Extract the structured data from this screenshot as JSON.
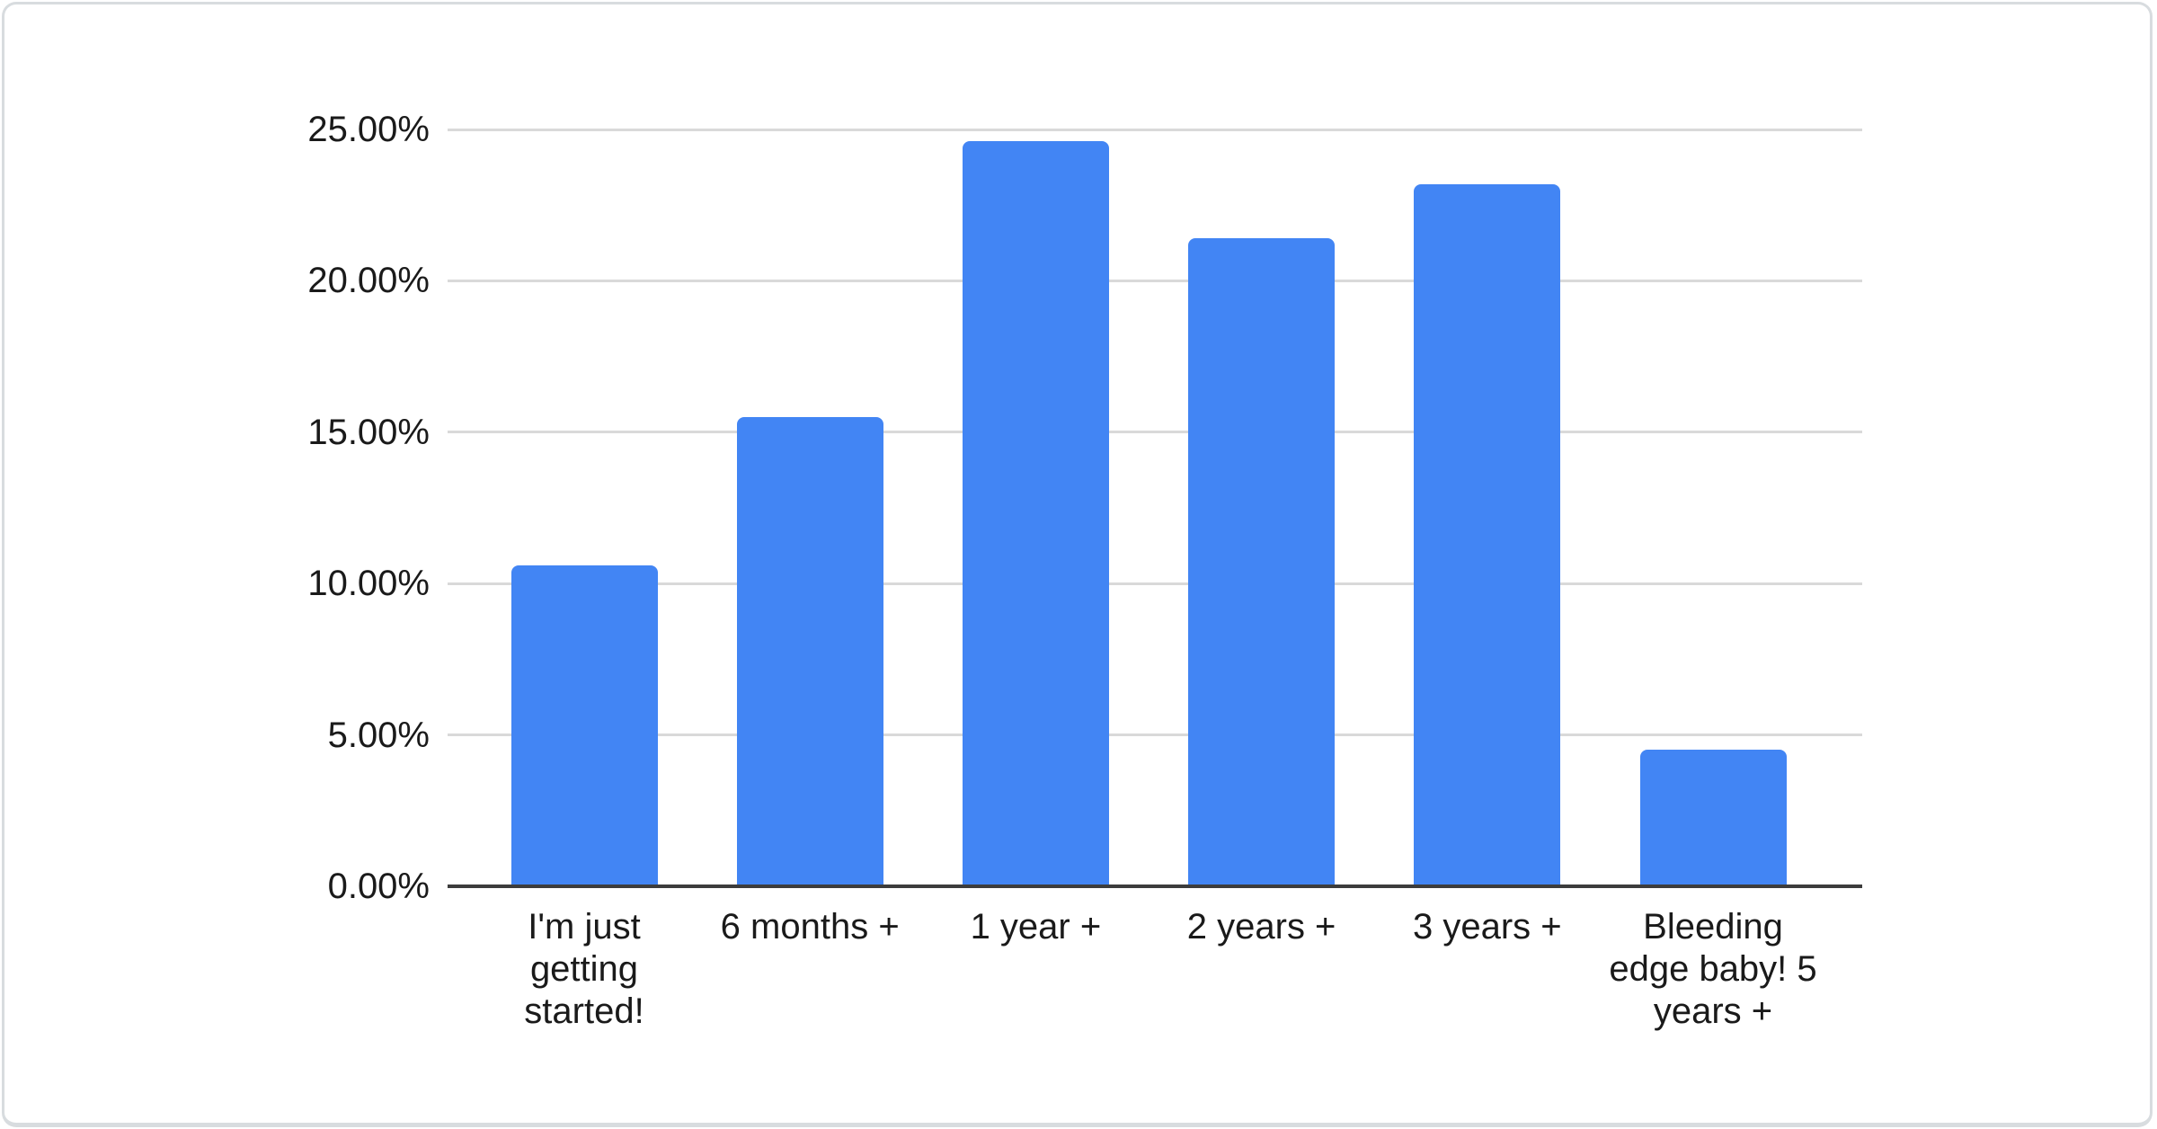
{
  "card": {
    "background": "#ffffff",
    "border_color": "#d8dcdf"
  },
  "chart_data": {
    "type": "bar",
    "title": "",
    "xlabel": "",
    "ylabel": "",
    "categories": [
      "I'm just getting started!",
      "6 months +",
      "1 year +",
      "2 years +",
      "3 years +",
      "Bleeding edge baby! 5 years +"
    ],
    "values": [
      10.6,
      15.5,
      24.6,
      21.4,
      23.2,
      4.5
    ],
    "value_format": "percent",
    "ylim": [
      0,
      25
    ],
    "y_ticks": [
      {
        "value": 0,
        "label": "0.00%"
      },
      {
        "value": 5,
        "label": "5.00%"
      },
      {
        "value": 10,
        "label": "10.00%"
      },
      {
        "value": 15,
        "label": "15.00%"
      },
      {
        "value": 20,
        "label": "20.00%"
      },
      {
        "value": 25,
        "label": "25.00%"
      }
    ],
    "grid": true,
    "legend_position": "none",
    "colors": {
      "bar": "#4285f4",
      "gridline": "#d9d9d9",
      "baseline": "#3c3c3c",
      "label_text": "#1a1a1a"
    }
  }
}
